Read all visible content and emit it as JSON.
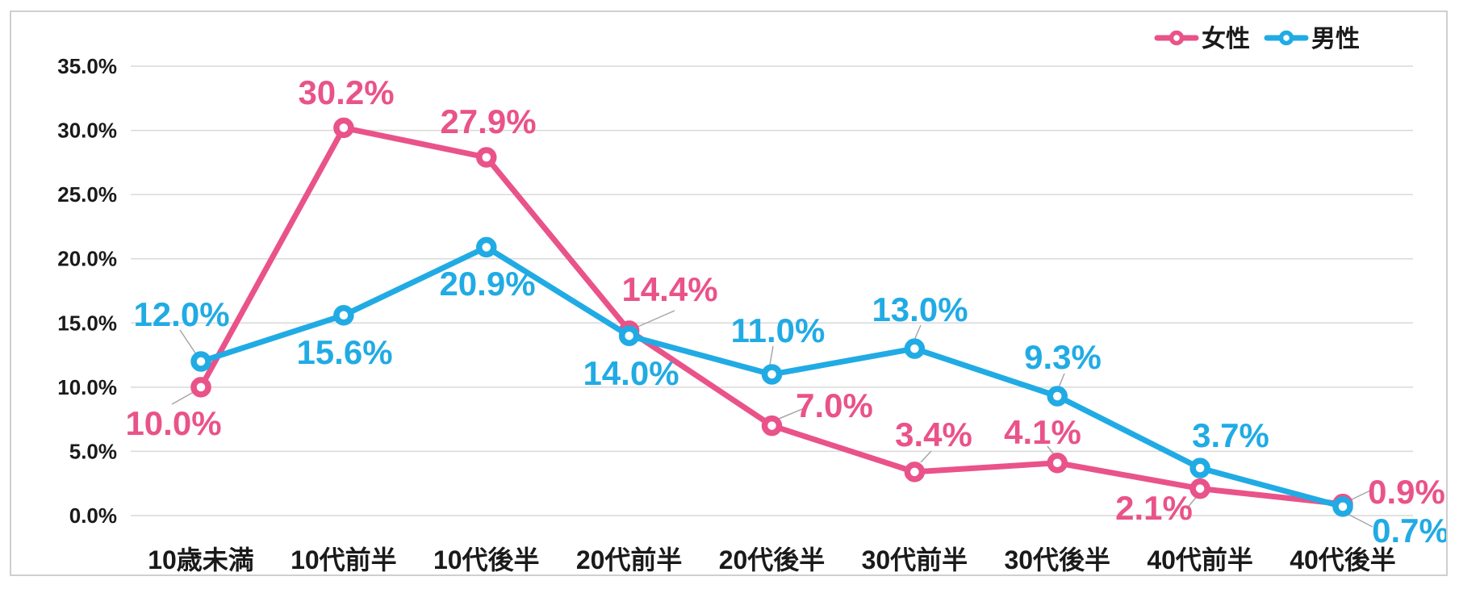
{
  "chart_data": {
    "type": "line",
    "title": "",
    "xlabel": "",
    "ylabel": "",
    "categories": [
      "10歳未満",
      "10代前半",
      "10代後半",
      "20代前半",
      "20代後半",
      "30代前半",
      "30代後半",
      "40代前半",
      "40代後半"
    ],
    "series": [
      {
        "name": "女性",
        "color": "#e95389",
        "values": [
          10.0,
          30.2,
          27.9,
          14.4,
          7.0,
          3.4,
          4.1,
          2.1,
          0.9
        ],
        "labels": [
          "10.0%",
          "30.2%",
          "27.9%",
          "14.4%",
          "7.0%",
          "3.4%",
          "4.1%",
          "2.1%",
          "0.9%"
        ]
      },
      {
        "name": "男性",
        "color": "#21abe4",
        "values": [
          12.0,
          15.6,
          20.9,
          14.0,
          11.0,
          13.0,
          9.3,
          3.7,
          0.7
        ],
        "labels": [
          "12.0%",
          "15.6%",
          "20.9%",
          "14.0%",
          "11.0%",
          "13.0%",
          "9.3%",
          "3.7%",
          "0.7%"
        ]
      }
    ],
    "y_axis": {
      "min": 0,
      "max": 35,
      "step": 5,
      "tick_labels": [
        "0.0%",
        "5.0%",
        "10.0%",
        "15.0%",
        "20.0%",
        "25.0%",
        "30.0%",
        "35.0%"
      ]
    },
    "grid": true,
    "legend_position": "top-right",
    "colors": {
      "grid_line": "#d9d9d9",
      "leader_line": "#a6a6a6",
      "axis_text": "#1a1a1a",
      "marker_fill": "#ffffff",
      "card_border": "#cfcfcf",
      "background": "#ffffff"
    }
  }
}
